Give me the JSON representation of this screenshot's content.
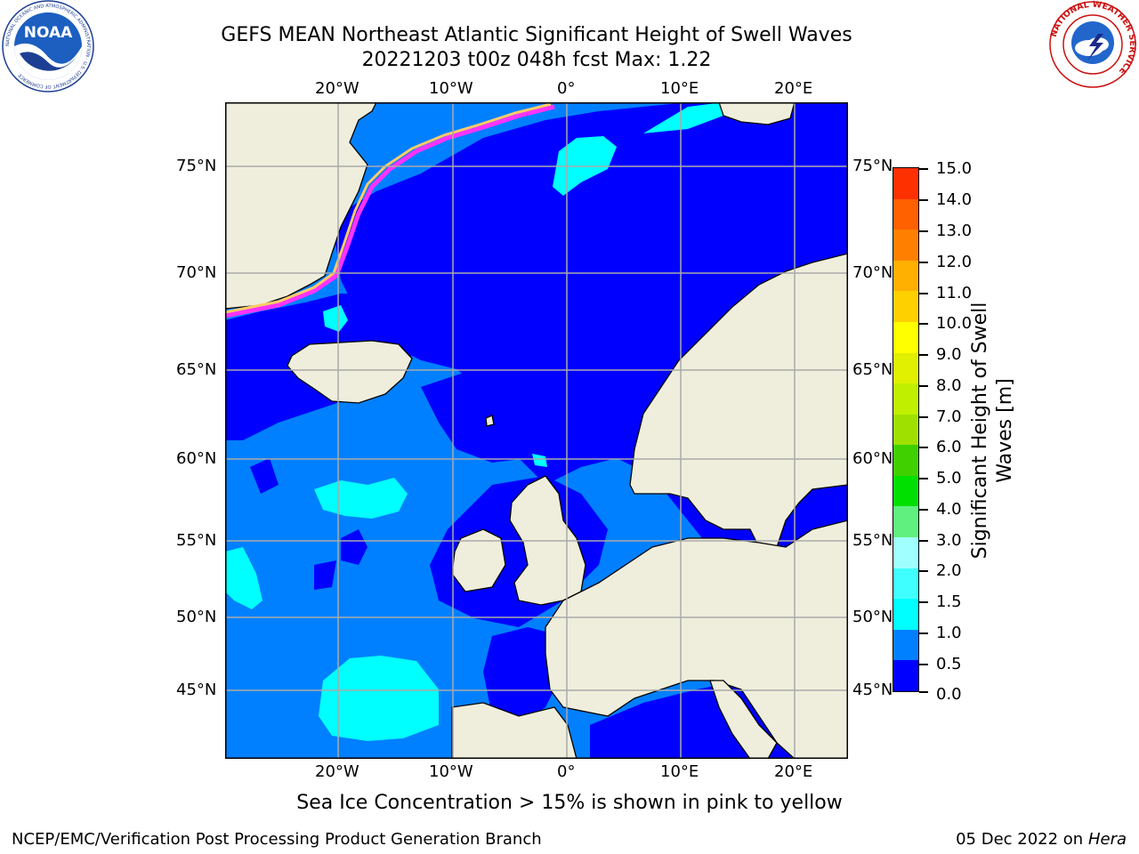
{
  "title": {
    "line1": "GEFS MEAN Northeast Atlantic Significant Height of Swell Waves",
    "line2": "20221203 t00z 048h fcst   Max: 1.22"
  },
  "map": {
    "longitude_ticks": [
      "20°W",
      "10°W",
      "0°",
      "10°E",
      "20°E"
    ],
    "latitude_ticks": [
      "75°N",
      "70°N",
      "65°N",
      "60°N",
      "55°N",
      "50°N",
      "45°N"
    ],
    "colors": {
      "land": "#efeedc",
      "ice_edge_pink": "#ff33ff",
      "ice_edge_yellow": "#ffcc66",
      "gridlines": "#aaaaaa",
      "swell_0_0_5": "#0000ff",
      "swell_0_5_1_0": "#0080ff",
      "swell_1_0_1_5": "#00ffff"
    }
  },
  "colorbar": {
    "label_line1": "Significant Height of Swell",
    "label_line2": "Waves [m]",
    "ticks": [
      "15.0",
      "14.0",
      "13.0",
      "12.0",
      "11.0",
      "10.0",
      "9.0",
      "8.0",
      "7.0",
      "6.0",
      "5.0",
      "4.0",
      "3.0",
      "2.0",
      "1.5",
      "1.0",
      "0.5",
      "0.0"
    ],
    "bins": [
      "#0000ff",
      "#0080ff",
      "#00ffff",
      "#40ffff",
      "#a0ffff",
      "#60f080",
      "#00e000",
      "#40d000",
      "#a0e000",
      "#c0f000",
      "#e0f000",
      "#ffff00",
      "#ffd000",
      "#ffb000",
      "#ff8000",
      "#ff6000",
      "#ff3000"
    ]
  },
  "caption": "Sea Ice Concentration > 15% is shown in pink to yellow",
  "footer": {
    "left": "NCEP/EMC/Verification Post Processing Product Generation Branch",
    "date": "05 Dec 2022 on",
    "machine": "Hera"
  },
  "logos": {
    "noaa": "NOAA",
    "noaa_ring": "NATIONAL OCEANIC AND ATMOSPHERIC ADMINISTRATION · U.S. DEPARTMENT OF COMMERCE",
    "nws_ring": "NATIONAL WEATHER SERVICE"
  }
}
